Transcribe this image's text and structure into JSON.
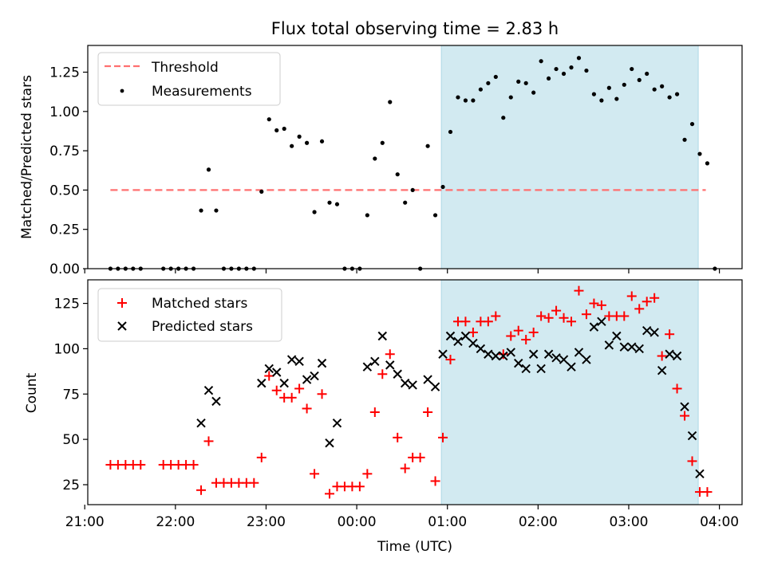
{
  "colors": {
    "threshold": "#ff7070",
    "measurements": "#000000",
    "matched": "#ff0000",
    "predicted": "#000000",
    "observing_window": "#add8e6"
  },
  "chart_data": [
    {
      "type": "scatter",
      "title": "Flux total observing time = 2.83 h",
      "xlabel": "",
      "ylabel": "Matched/Predicted stars",
      "ylim": [
        0,
        1.42
      ],
      "yticks": [
        "0.00",
        "0.25",
        "0.50",
        "0.75",
        "1.00",
        "1.25"
      ],
      "xlim": [
        "21:02",
        "04:15"
      ],
      "shaded_span": {
        "x0": "00:56",
        "x1": "03:46"
      },
      "legend_position": "upper-left",
      "threshold": {
        "name": "Threshold",
        "value": 0.5,
        "x0": "21:17",
        "x1": "03:51",
        "style": "dashed"
      },
      "series": [
        {
          "name": "Measurements",
          "points": [
            [
              "21:17",
              0
            ],
            [
              "21:22",
              0
            ],
            [
              "21:27",
              0
            ],
            [
              "21:32",
              0
            ],
            [
              "21:37",
              0
            ],
            [
              "21:52",
              0
            ],
            [
              "21:57",
              0
            ],
            [
              "22:02",
              0
            ],
            [
              "22:07",
              0
            ],
            [
              "22:12",
              0
            ],
            [
              "22:17",
              0.37
            ],
            [
              "22:22",
              0.63
            ],
            [
              "22:27",
              0.37
            ],
            [
              "22:32",
              0
            ],
            [
              "22:37",
              0
            ],
            [
              "22:42",
              0
            ],
            [
              "22:47",
              0
            ],
            [
              "22:52",
              0
            ],
            [
              "22:57",
              0.49
            ],
            [
              "23:02",
              0.95
            ],
            [
              "23:07",
              0.88
            ],
            [
              "23:12",
              0.89
            ],
            [
              "23:17",
              0.78
            ],
            [
              "23:22",
              0.84
            ],
            [
              "23:27",
              0.8
            ],
            [
              "23:32",
              0.36
            ],
            [
              "23:37",
              0.81
            ],
            [
              "23:42",
              0.42
            ],
            [
              "23:47",
              0.41
            ],
            [
              "23:52",
              0
            ],
            [
              "23:57",
              0
            ],
            [
              "00:02",
              0
            ],
            [
              "00:07",
              0.34
            ],
            [
              "00:12",
              0.7
            ],
            [
              "00:17",
              0.8
            ],
            [
              "00:22",
              1.06
            ],
            [
              "00:27",
              0.6
            ],
            [
              "00:32",
              0.42
            ],
            [
              "00:37",
              0.5
            ],
            [
              "00:42",
              0
            ],
            [
              "00:47",
              0.78
            ],
            [
              "00:52",
              0.34
            ],
            [
              "00:57",
              0.52
            ],
            [
              "01:02",
              0.87
            ],
            [
              "01:07",
              1.09
            ],
            [
              "01:12",
              1.07
            ],
            [
              "01:17",
              1.07
            ],
            [
              "01:22",
              1.14
            ],
            [
              "01:27",
              1.18
            ],
            [
              "01:32",
              1.22
            ],
            [
              "01:37",
              0.96
            ],
            [
              "01:42",
              1.09
            ],
            [
              "01:47",
              1.19
            ],
            [
              "01:52",
              1.18
            ],
            [
              "01:57",
              1.12
            ],
            [
              "02:02",
              1.32
            ],
            [
              "02:07",
              1.21
            ],
            [
              "02:12",
              1.27
            ],
            [
              "02:17",
              1.24
            ],
            [
              "02:22",
              1.28
            ],
            [
              "02:27",
              1.34
            ],
            [
              "02:32",
              1.26
            ],
            [
              "02:37",
              1.11
            ],
            [
              "02:42",
              1.07
            ],
            [
              "02:47",
              1.15
            ],
            [
              "02:52",
              1.08
            ],
            [
              "02:57",
              1.17
            ],
            [
              "03:02",
              1.27
            ],
            [
              "03:07",
              1.2
            ],
            [
              "03:12",
              1.24
            ],
            [
              "03:17",
              1.14
            ],
            [
              "03:22",
              1.16
            ],
            [
              "03:27",
              1.09
            ],
            [
              "03:32",
              1.11
            ],
            [
              "03:37",
              0.82
            ],
            [
              "03:42",
              0.92
            ],
            [
              "03:47",
              0.73
            ],
            [
              "03:52",
              0.67
            ],
            [
              "03:57",
              0
            ]
          ]
        }
      ]
    },
    {
      "type": "scatter",
      "title": "",
      "xlabel": "Time (UTC)",
      "ylabel": "Count",
      "ylim": [
        14,
        138
      ],
      "yticks": [
        "25",
        "50",
        "75",
        "100",
        "125"
      ],
      "xlim": [
        "21:02",
        "04:15"
      ],
      "xticks": [
        "21:00",
        "22:00",
        "23:00",
        "00:00",
        "01:00",
        "02:00",
        "03:00",
        "04:00"
      ],
      "shaded_span": {
        "x0": "00:56",
        "x1": "03:46"
      },
      "legend_position": "upper-left",
      "series": [
        {
          "name": "Matched stars",
          "marker": "plus",
          "points": [
            [
              "21:17",
              36
            ],
            [
              "21:22",
              36
            ],
            [
              "21:27",
              36
            ],
            [
              "21:32",
              36
            ],
            [
              "21:37",
              36
            ],
            [
              "21:52",
              36
            ],
            [
              "21:57",
              36
            ],
            [
              "22:02",
              36
            ],
            [
              "22:07",
              36
            ],
            [
              "22:12",
              36
            ],
            [
              "22:17",
              22
            ],
            [
              "22:22",
              49
            ],
            [
              "22:27",
              26
            ],
            [
              "22:32",
              26
            ],
            [
              "22:37",
              26
            ],
            [
              "22:42",
              26
            ],
            [
              "22:47",
              26
            ],
            [
              "22:52",
              26
            ],
            [
              "22:57",
              40
            ],
            [
              "23:02",
              85
            ],
            [
              "23:07",
              77
            ],
            [
              "23:12",
              73
            ],
            [
              "23:17",
              73
            ],
            [
              "23:22",
              78
            ],
            [
              "23:27",
              67
            ],
            [
              "23:32",
              31
            ],
            [
              "23:37",
              75
            ],
            [
              "23:42",
              20
            ],
            [
              "23:47",
              24
            ],
            [
              "23:52",
              24
            ],
            [
              "23:57",
              24
            ],
            [
              "00:02",
              24
            ],
            [
              "00:07",
              31
            ],
            [
              "00:12",
              65
            ],
            [
              "00:17",
              86
            ],
            [
              "00:22",
              97
            ],
            [
              "00:27",
              51
            ],
            [
              "00:32",
              34
            ],
            [
              "00:37",
              40
            ],
            [
              "00:42",
              40
            ],
            [
              "00:47",
              65
            ],
            [
              "00:52",
              27
            ],
            [
              "00:57",
              51
            ],
            [
              "01:02",
              94
            ],
            [
              "01:07",
              115
            ],
            [
              "01:12",
              115
            ],
            [
              "01:17",
              109
            ],
            [
              "01:22",
              115
            ],
            [
              "01:27",
              115
            ],
            [
              "01:32",
              118
            ],
            [
              "01:37",
              97
            ],
            [
              "01:42",
              107
            ],
            [
              "01:47",
              110
            ],
            [
              "01:52",
              105
            ],
            [
              "01:57",
              109
            ],
            [
              "02:02",
              118
            ],
            [
              "02:07",
              117
            ],
            [
              "02:12",
              121
            ],
            [
              "02:17",
              117
            ],
            [
              "02:22",
              115
            ],
            [
              "02:27",
              132
            ],
            [
              "02:32",
              119
            ],
            [
              "02:37",
              125
            ],
            [
              "02:42",
              124
            ],
            [
              "02:47",
              118
            ],
            [
              "02:52",
              118
            ],
            [
              "02:57",
              118
            ],
            [
              "03:02",
              129
            ],
            [
              "03:07",
              122
            ],
            [
              "03:12",
              126
            ],
            [
              "03:17",
              128
            ],
            [
              "03:22",
              96
            ],
            [
              "03:27",
              108
            ],
            [
              "03:32",
              78
            ],
            [
              "03:37",
              63
            ],
            [
              "03:42",
              38
            ],
            [
              "03:47",
              21
            ],
            [
              "03:52",
              21
            ]
          ]
        },
        {
          "name": "Predicted stars",
          "marker": "x",
          "points": [
            [
              "22:17",
              59
            ],
            [
              "22:22",
              77
            ],
            [
              "22:27",
              71
            ],
            [
              "22:57",
              81
            ],
            [
              "23:02",
              89
            ],
            [
              "23:07",
              87
            ],
            [
              "23:12",
              81
            ],
            [
              "23:17",
              94
            ],
            [
              "23:22",
              93
            ],
            [
              "23:27",
              83
            ],
            [
              "23:32",
              85
            ],
            [
              "23:37",
              92
            ],
            [
              "23:42",
              48
            ],
            [
              "23:47",
              59
            ],
            [
              "00:07",
              90
            ],
            [
              "00:12",
              93
            ],
            [
              "00:17",
              107
            ],
            [
              "00:22",
              91
            ],
            [
              "00:27",
              86
            ],
            [
              "00:32",
              81
            ],
            [
              "00:37",
              80
            ],
            [
              "00:47",
              83
            ],
            [
              "00:52",
              79
            ],
            [
              "00:57",
              97
            ],
            [
              "01:02",
              107
            ],
            [
              "01:07",
              104
            ],
            [
              "01:12",
              107
            ],
            [
              "01:17",
              103
            ],
            [
              "01:22",
              100
            ],
            [
              "01:27",
              97
            ],
            [
              "01:32",
              96
            ],
            [
              "01:37",
              96
            ],
            [
              "01:42",
              98
            ],
            [
              "01:47",
              92
            ],
            [
              "01:52",
              89
            ],
            [
              "01:57",
              97
            ],
            [
              "02:02",
              89
            ],
            [
              "02:07",
              97
            ],
            [
              "02:12",
              95
            ],
            [
              "02:17",
              94
            ],
            [
              "02:22",
              90
            ],
            [
              "02:27",
              98
            ],
            [
              "02:32",
              94
            ],
            [
              "02:37",
              112
            ],
            [
              "02:42",
              115
            ],
            [
              "02:47",
              102
            ],
            [
              "02:52",
              107
            ],
            [
              "02:57",
              101
            ],
            [
              "03:02",
              101
            ],
            [
              "03:07",
              100
            ],
            [
              "03:12",
              110
            ],
            [
              "03:17",
              109
            ],
            [
              "03:22",
              88
            ],
            [
              "03:27",
              97
            ],
            [
              "03:32",
              96
            ],
            [
              "03:37",
              68
            ],
            [
              "03:42",
              52
            ],
            [
              "03:47",
              31
            ]
          ]
        }
      ]
    }
  ]
}
